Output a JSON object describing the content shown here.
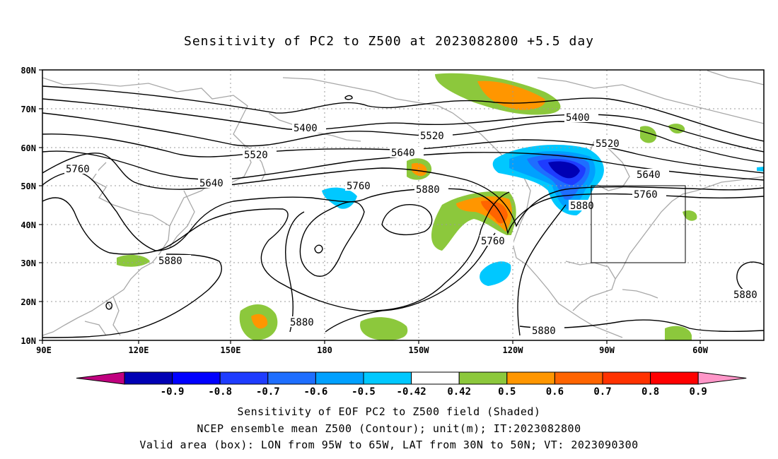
{
  "title": "Sensitivity of PC2 to Z500 at 2023082800 +5.5 day",
  "footer": {
    "line1": "Sensitivity of EOF PC2 to Z500 field (Shaded)",
    "line2": "NCEP ensemble mean Z500 (Contour); unit(m); IT:2023082800",
    "line3": "Valid area (box): LON from 95W to 65W, LAT from 30N to 50N; VT: 2023090300"
  },
  "map": {
    "lon_labels": [
      "90E",
      "120E",
      "150E",
      "180",
      "150W",
      "120W",
      "90W",
      "60W"
    ],
    "lat_labels": [
      "80N",
      "70N",
      "60N",
      "50N",
      "40N",
      "30N",
      "20N",
      "10N"
    ],
    "contour_labels": [
      "5400",
      "5400",
      "5520",
      "5520",
      "5520",
      "5640",
      "5640",
      "5640",
      "5760",
      "5760",
      "5760",
      "5760",
      "5880",
      "5880",
      "5880",
      "5880",
      "5880",
      "5880"
    ],
    "valid_box": {
      "lon": [
        "95W",
        "65W"
      ],
      "lat": [
        "30N",
        "50N"
      ]
    }
  },
  "colorbar": {
    "labels": [
      "-0.9",
      "-0.8",
      "-0.7",
      "-0.6",
      "-0.5",
      "-0.42",
      "0.42",
      "0.5",
      "0.6",
      "0.7",
      "0.8",
      "0.9"
    ],
    "colors": [
      "#c0007f",
      "#0000b4",
      "#0000ff",
      "#1e3cff",
      "#1e6eff",
      "#00a0ff",
      "#00c8ff",
      "#ffffff",
      "#8cc83c",
      "#ff9600",
      "#ff6400",
      "#ff3200",
      "#ff0000",
      "#ff96c8"
    ]
  }
}
